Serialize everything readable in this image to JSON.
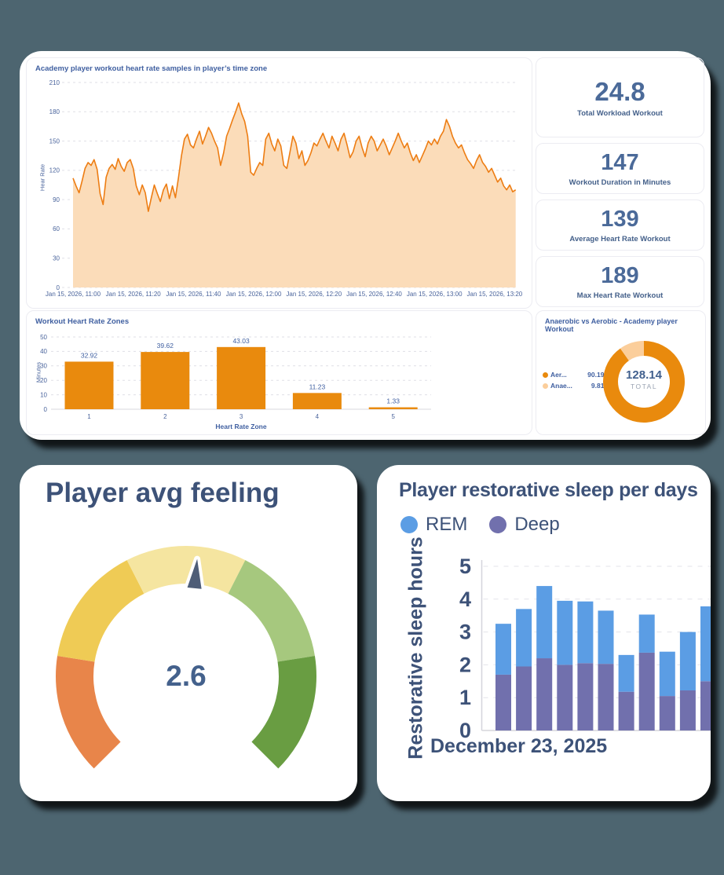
{
  "page_background": "#4d6570",
  "stats": [
    {
      "value": "24.8",
      "label": "Total Workload Workout"
    },
    {
      "value": "147",
      "label": "Workout Duration in Minutes"
    },
    {
      "value": "139",
      "label": "Average Heart Rate Workout"
    },
    {
      "value": "189",
      "label": "Max Heart Rate Workout"
    }
  ],
  "chart_data": [
    {
      "type": "area",
      "title": "Academy player workout heart rate samples in player’s time zone",
      "ylabel": "Hear Rate",
      "ylim": [
        0,
        210
      ],
      "yticks": [
        210,
        180,
        150,
        120,
        90,
        60,
        30,
        0
      ],
      "xticks": [
        "Jan 15, 2026, 11:00",
        "Jan 15, 2026, 11:20",
        "Jan 15, 2026, 11:40",
        "Jan 15, 2026, 12:00",
        "Jan 15, 2026, 12:20",
        "Jan 15, 2026, 12:40",
        "Jan 15, 2026, 13:00",
        "Jan 15, 2026, 13:20"
      ],
      "x_interval_minutes": 1,
      "line_color": "#ed7d13",
      "area_color": "#fbdcb9",
      "grid": true,
      "values": [
        112,
        104,
        97,
        109,
        122,
        128,
        125,
        131,
        121,
        96,
        85,
        113,
        122,
        126,
        121,
        132,
        124,
        119,
        128,
        131,
        122,
        104,
        95,
        105,
        97,
        78,
        92,
        105,
        96,
        88,
        100,
        106,
        91,
        104,
        92,
        112,
        135,
        152,
        157,
        146,
        143,
        152,
        160,
        147,
        155,
        164,
        158,
        150,
        143,
        125,
        138,
        155,
        163,
        172,
        180,
        189,
        178,
        170,
        155,
        118,
        115,
        122,
        128,
        125,
        152,
        158,
        147,
        140,
        152,
        145,
        125,
        122,
        138,
        155,
        148,
        132,
        140,
        125,
        130,
        138,
        148,
        145,
        152,
        158,
        150,
        143,
        155,
        148,
        140,
        152,
        158,
        146,
        133,
        139,
        150,
        155,
        143,
        134,
        148,
        155,
        150,
        140,
        146,
        152,
        145,
        136,
        143,
        150,
        158,
        150,
        143,
        148,
        138,
        130,
        136,
        128,
        135,
        142,
        150,
        146,
        152,
        147,
        155,
        160,
        172,
        165,
        155,
        148,
        143,
        146,
        138,
        131,
        127,
        122,
        130,
        136,
        128,
        124,
        118,
        122,
        115,
        108,
        112,
        104,
        100,
        105,
        98,
        100
      ]
    },
    {
      "type": "bar",
      "title": "Workout Heart Rate Zones",
      "xlabel": "Heart Rate Zone",
      "ylabel": "Minutes",
      "ylim": [
        0,
        50
      ],
      "yticks": [
        0,
        10,
        20,
        30,
        40,
        50
      ],
      "categories": [
        "1",
        "2",
        "3",
        "4",
        "5"
      ],
      "values": [
        32.92,
        39.62,
        43.03,
        11.23,
        1.33
      ],
      "value_labels": [
        "32.92",
        "39.62",
        "43.03",
        "11.23",
        "1.33"
      ],
      "bar_color": "#e98a0d",
      "grid": true
    },
    {
      "type": "pie",
      "title": "Anaerobic vs Aerobic - Academy player Workout",
      "center_value": "128.14",
      "center_label": "TOTAL",
      "legend_position": "left",
      "slices": [
        {
          "label": "Aer...",
          "pct": "90.19%",
          "value": 90.19,
          "color": "#e98a0d"
        },
        {
          "label": "Anae...",
          "pct": "9.81%",
          "value": 9.81,
          "color": "#fbce9b"
        }
      ]
    },
    {
      "type": "gauge",
      "title": "Player avg feeling",
      "value": 2.6,
      "min": 0,
      "max": 5,
      "needle_color": "#4e5d77",
      "segments": [
        {
          "color": "#e8854a"
        },
        {
          "color": "#efcb55"
        },
        {
          "color": "#f5e5a0"
        },
        {
          "color": "#a6c87e"
        },
        {
          "color": "#699d42"
        }
      ]
    },
    {
      "type": "stacked-bar",
      "title": "Player restorative sleep per days",
      "ylabel": "Restorative sleep hours",
      "ylim": [
        0,
        5
      ],
      "yticks": [
        0,
        1,
        2,
        3,
        4,
        5
      ],
      "x_axis_label": "December 23, 2025",
      "legend_position": "top",
      "series": [
        {
          "name": "REM",
          "color": "#5b9de4",
          "values": [
            1.55,
            1.75,
            2.2,
            1.95,
            1.88,
            1.62,
            1.12,
            1.16,
            1.35,
            1.78,
            2.28
          ]
        },
        {
          "name": "Deep",
          "color": "#7170ad",
          "values": [
            1.7,
            1.95,
            2.2,
            2.0,
            2.05,
            2.03,
            1.18,
            2.37,
            1.05,
            1.22,
            1.5
          ]
        }
      ]
    }
  ]
}
